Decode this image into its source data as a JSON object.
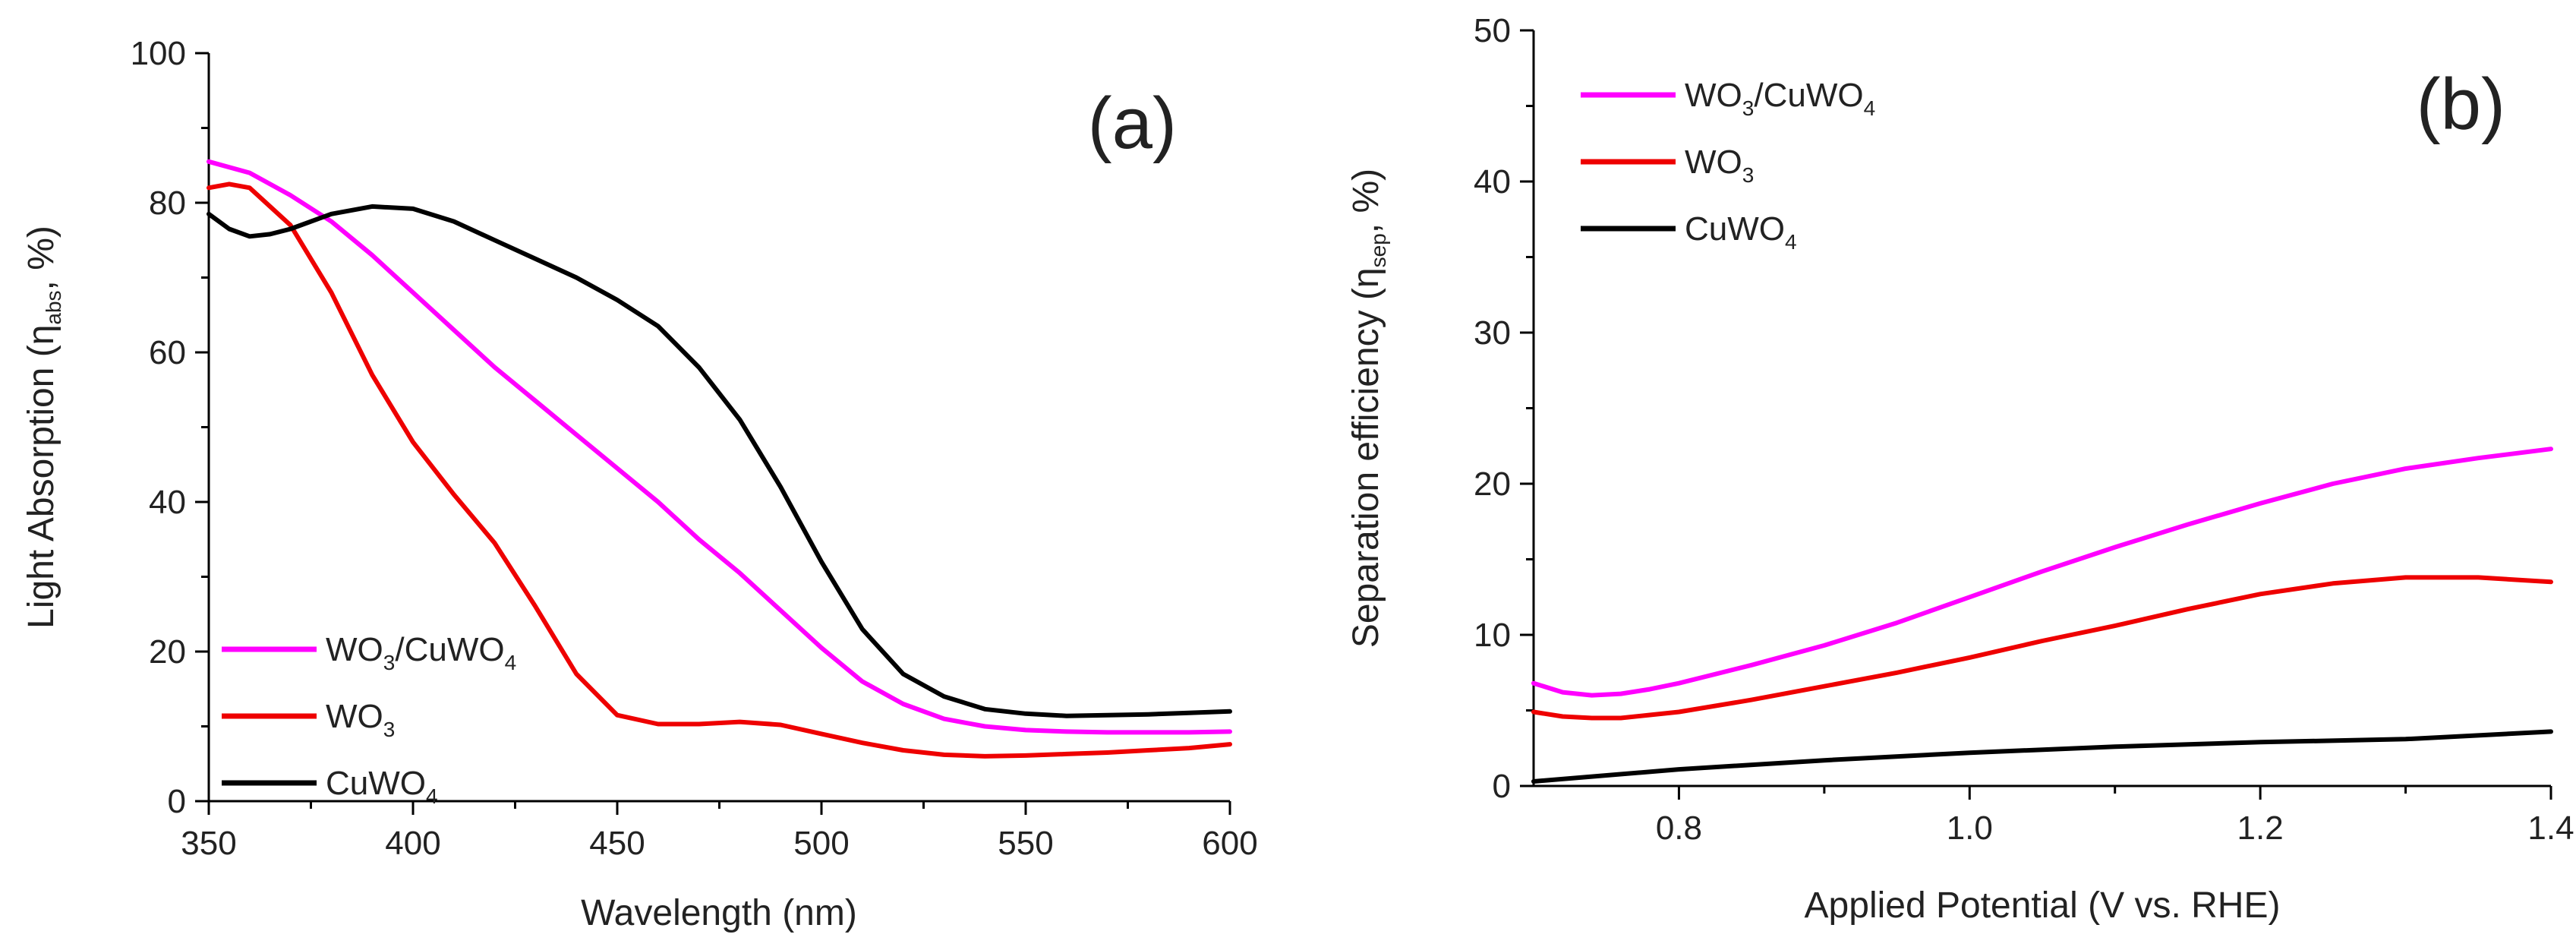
{
  "colors": {
    "WO3/CuWO4": "#ff00ff",
    "WO3": "#ee0000",
    "CuWO4": "#000000",
    "axis": "#000000"
  },
  "chart_data": [
    {
      "type": "line",
      "panel_label": "(a)",
      "xlabel": "Wavelength (nm)",
      "ylabel": {
        "prefix": "Light Absorption (",
        "symbol": "η",
        "sub": "abs",
        "suffix": ", %)"
      },
      "xlim": [
        350,
        600
      ],
      "ylim": [
        0,
        100
      ],
      "xticks": [
        350,
        400,
        450,
        500,
        550,
        600
      ],
      "yticks": [
        0,
        20,
        40,
        60,
        80,
        100
      ],
      "grid": false,
      "legend_position": "bottom-left",
      "series": [
        {
          "name": "WO3/CuWO4",
          "legend": {
            "a": "WO",
            "a_sub": "3",
            "b": "/CuWO",
            "b_sub": "4"
          },
          "x": [
            350,
            360,
            370,
            380,
            390,
            400,
            410,
            420,
            430,
            440,
            450,
            460,
            470,
            480,
            490,
            500,
            510,
            520,
            530,
            540,
            550,
            560,
            570,
            580,
            590,
            600
          ],
          "y": [
            85.5,
            84,
            81,
            77.5,
            73,
            68,
            63,
            58,
            53.5,
            49,
            44.5,
            40,
            35,
            30.5,
            25.5,
            20.5,
            16,
            13,
            11,
            10,
            9.5,
            9.3,
            9.2,
            9.2,
            9.2,
            9.3
          ]
        },
        {
          "name": "WO3",
          "legend": {
            "a": "WO",
            "a_sub": "3",
            "b": "",
            "b_sub": ""
          },
          "x": [
            350,
            355,
            360,
            370,
            380,
            390,
            400,
            410,
            420,
            430,
            440,
            450,
            460,
            470,
            480,
            490,
            500,
            510,
            520,
            530,
            540,
            550,
            560,
            570,
            580,
            590,
            600
          ],
          "y": [
            82,
            82.5,
            82,
            77,
            68,
            57,
            48,
            41,
            34.5,
            26,
            17,
            11.5,
            10.3,
            10.3,
            10.6,
            10.2,
            9,
            7.8,
            6.8,
            6.2,
            6,
            6.1,
            6.3,
            6.5,
            6.8,
            7.1,
            7.6
          ]
        },
        {
          "name": "CuWO4",
          "legend": {
            "a": "CuWO",
            "a_sub": "4",
            "b": "",
            "b_sub": ""
          },
          "x": [
            350,
            355,
            360,
            365,
            370,
            380,
            390,
            400,
            410,
            420,
            430,
            440,
            450,
            460,
            470,
            480,
            490,
            500,
            510,
            520,
            530,
            540,
            550,
            560,
            570,
            580,
            590,
            600
          ],
          "y": [
            78.5,
            76.5,
            75.5,
            75.8,
            76.5,
            78.5,
            79.5,
            79.2,
            77.5,
            75,
            72.5,
            70,
            67,
            63.5,
            58,
            51,
            42,
            32,
            23,
            17,
            14,
            12.3,
            11.7,
            11.4,
            11.5,
            11.6,
            11.8,
            12
          ]
        }
      ]
    },
    {
      "type": "line",
      "panel_label": "(b)",
      "xlabel": "Applied Potential (V vs. RHE)",
      "ylabel": {
        "prefix": "Separation efficiency (",
        "symbol": "η",
        "sub": "sep",
        "suffix": ", %)"
      },
      "xlim": [
        0.7,
        1.4
      ],
      "ylim": [
        0,
        50
      ],
      "xticks": [
        "0.8",
        "1.0",
        "1.2",
        "1.4"
      ],
      "yticks": [
        0,
        10,
        20,
        30,
        40,
        50
      ],
      "grid": false,
      "legend_position": "top-left",
      "series": [
        {
          "name": "WO3/CuWO4",
          "legend": {
            "a": "WO",
            "a_sub": "3",
            "b": "/CuWO",
            "b_sub": "4"
          },
          "x": [
            0.7,
            0.72,
            0.74,
            0.76,
            0.78,
            0.8,
            0.85,
            0.9,
            0.95,
            1.0,
            1.05,
            1.1,
            1.15,
            1.2,
            1.25,
            1.3,
            1.35,
            1.4
          ],
          "y": [
            6.8,
            6.2,
            6.0,
            6.1,
            6.4,
            6.8,
            8.0,
            9.3,
            10.8,
            12.5,
            14.2,
            15.8,
            17.3,
            18.7,
            20.0,
            21.0,
            21.7,
            22.3
          ]
        },
        {
          "name": "WO3",
          "legend": {
            "a": "WO",
            "a_sub": "3",
            "b": "",
            "b_sub": ""
          },
          "x": [
            0.7,
            0.72,
            0.74,
            0.76,
            0.78,
            0.8,
            0.85,
            0.9,
            0.95,
            1.0,
            1.05,
            1.1,
            1.15,
            1.2,
            1.25,
            1.3,
            1.35,
            1.4
          ],
          "y": [
            4.9,
            4.6,
            4.5,
            4.5,
            4.7,
            4.9,
            5.7,
            6.6,
            7.5,
            8.5,
            9.6,
            10.6,
            11.7,
            12.7,
            13.4,
            13.8,
            13.8,
            13.5
          ]
        },
        {
          "name": "CuWO4",
          "legend": {
            "a": "CuWO",
            "a_sub": "4",
            "b": "",
            "b_sub": ""
          },
          "x": [
            0.7,
            0.8,
            0.9,
            1.0,
            1.1,
            1.2,
            1.3,
            1.4
          ],
          "y": [
            0.3,
            1.1,
            1.7,
            2.2,
            2.6,
            2.9,
            3.1,
            3.6
          ]
        }
      ]
    }
  ]
}
